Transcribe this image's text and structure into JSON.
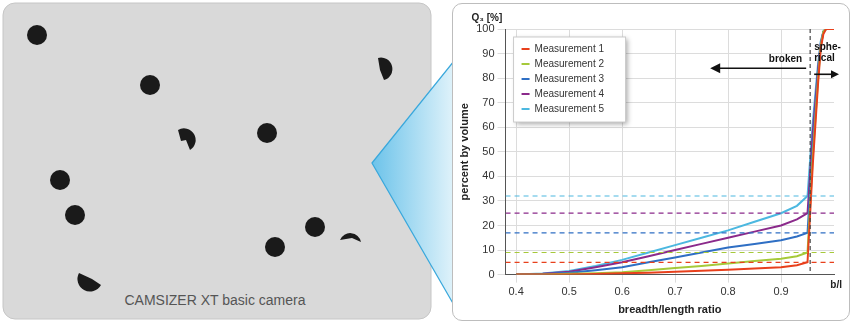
{
  "camera": {
    "caption": "CAMSIZER XT basic camera"
  },
  "chart_data": {
    "type": "line",
    "xlabel": "breadth/length ratio",
    "x_unit_label": "b/l",
    "ylabel": "percent by volume",
    "y_unit_label": "Q₃ [%]",
    "x": [
      0.4,
      0.45,
      0.5,
      0.55,
      0.6,
      0.65,
      0.7,
      0.75,
      0.8,
      0.85,
      0.9,
      0.93,
      0.95,
      0.96,
      0.97,
      0.975,
      0.98,
      0.985,
      1.0
    ],
    "series": [
      {
        "name": "Measurement 1",
        "color": "#e8401c",
        "line_style": "solid",
        "level": 5,
        "values": [
          0,
          0,
          0,
          0.2,
          0.5,
          0.8,
          1.2,
          1.6,
          2,
          2.5,
          3,
          3.8,
          5,
          45,
          78,
          92,
          98,
          100,
          100
        ]
      },
      {
        "name": "Measurement 2",
        "color": "#a6c93a",
        "line_style": "solid",
        "level": 9,
        "values": [
          0,
          0,
          0.3,
          0.6,
          1,
          1.8,
          2.7,
          3.5,
          4.5,
          5.5,
          6.5,
          7.5,
          9,
          48,
          80,
          93,
          99,
          100,
          100
        ]
      },
      {
        "name": "Measurement 3",
        "color": "#2f6fc4",
        "line_style": "solid",
        "level": 17,
        "values": [
          0,
          0.2,
          0.8,
          1.8,
          3,
          5,
          7,
          9,
          11,
          12.5,
          14,
          15.5,
          17,
          52,
          82,
          93,
          99,
          100,
          100
        ]
      },
      {
        "name": "Measurement 4",
        "color": "#8b2a8b",
        "line_style": "solid",
        "level": 25,
        "values": [
          0,
          0.3,
          1.2,
          3,
          5,
          7.5,
          10,
          12.5,
          15,
          17.5,
          20,
          22.5,
          25,
          58,
          84,
          94,
          99,
          100,
          100
        ]
      },
      {
        "name": "Measurement 5",
        "color": "#4cb8e0",
        "line_style": "solid",
        "level": 32,
        "values": [
          0,
          0.4,
          1.5,
          3.5,
          6,
          9,
          12,
          15,
          18,
          21.5,
          25,
          28,
          32,
          62,
          86,
          95,
          99,
          100,
          100
        ]
      }
    ],
    "xlim": [
      0.38,
      1.0
    ],
    "xticks": [
      0.4,
      0.5,
      0.6,
      0.7,
      0.8,
      0.9
    ],
    "ylim": [
      0,
      100
    ],
    "yticks": [
      0,
      10,
      20,
      30,
      40,
      50,
      60,
      70,
      80,
      90,
      100
    ],
    "grid": true,
    "legend": "upper left",
    "threshold": 0.955,
    "annotations": [
      "broken",
      "sphe-\nrical"
    ]
  }
}
